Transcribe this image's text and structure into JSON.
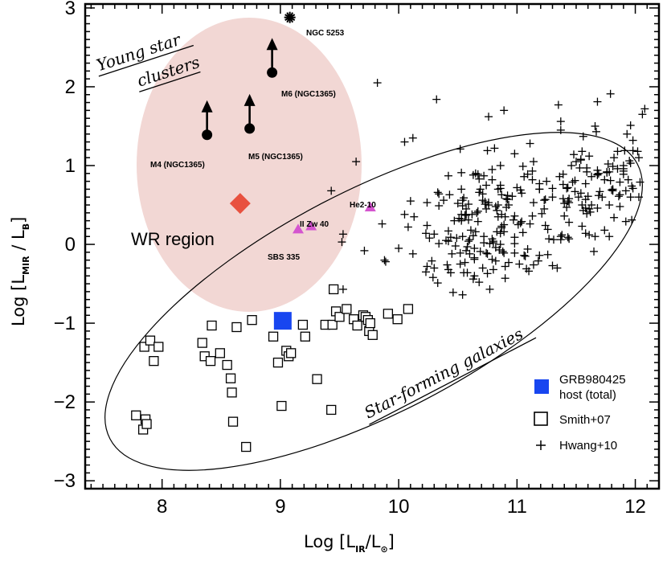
{
  "chart_data": {
    "type": "scatter",
    "xlabel": {
      "prefix": "Log [L",
      "sub1": "IR",
      "mid": "/L",
      "sub2": "⊙",
      "suffix": "]"
    },
    "ylabel": {
      "prefix": "Log [L",
      "sub1": "MIR",
      "mid": " / L",
      "sub2": "B",
      "suffix": "]"
    },
    "xlim": [
      7.35,
      12.2
    ],
    "ylim": [
      -3.1,
      3.05
    ],
    "xticks": [
      "8",
      "9",
      "10",
      "11",
      "12"
    ],
    "yticks": [
      "−3",
      "−2",
      "−1",
      "0",
      "1",
      "2",
      "3"
    ],
    "xtick_values": [
      8,
      9,
      10,
      11,
      12
    ],
    "ytick_values": [
      -3,
      -2,
      -1,
      0,
      1,
      2,
      3
    ],
    "regions": {
      "young_star_clusters": {
        "label_line1": "Young star",
        "label_line2": "clusters",
        "color": "#f2d7d4"
      },
      "wr_region": {
        "label": "WR region"
      },
      "star_forming_galaxies": {
        "label": "Star-forming galaxies"
      }
    },
    "series": [
      {
        "name": "GRB980425 host (total)",
        "marker": "filled-square",
        "color": "#1846f0",
        "x": [
          9.02
        ],
        "y": [
          -0.97
        ]
      },
      {
        "name": "Smith+07",
        "marker": "open-square",
        "color": "#000000",
        "x": [
          7.78,
          7.84,
          7.85,
          7.86,
          7.87,
          7.9,
          7.93,
          7.97,
          8.34,
          8.36,
          8.41,
          8.42,
          8.49,
          8.55,
          8.58,
          8.59,
          8.6,
          8.63,
          8.71,
          8.76,
          8.94,
          8.98,
          9.01,
          9.05,
          9.07,
          9.09,
          9.19,
          9.21,
          9.31,
          9.38,
          9.43,
          9.44,
          9.45,
          9.47,
          9.5,
          9.56,
          9.62,
          9.65,
          9.7,
          9.72,
          9.74,
          9.75,
          9.76,
          9.78,
          9.91,
          9.99,
          10.08
        ],
        "y": [
          -2.17,
          -2.35,
          -1.3,
          -2.22,
          -2.28,
          -1.22,
          -1.48,
          -1.3,
          -1.25,
          -1.42,
          -1.48,
          -1.03,
          -1.38,
          -1.53,
          -1.7,
          -1.88,
          -2.25,
          -1.05,
          -2.57,
          -0.96,
          -1.17,
          -1.5,
          -2.05,
          -1.35,
          -1.42,
          -1.38,
          -1.02,
          -1.17,
          -1.71,
          -1.02,
          -2.1,
          -1.02,
          -0.57,
          -0.85,
          -0.92,
          -0.82,
          -0.95,
          -1.03,
          -0.9,
          -0.92,
          -0.96,
          -1.1,
          -1.0,
          -1.15,
          -0.88,
          -0.95,
          -0.82
        ]
      },
      {
        "name": "Hwang+10",
        "marker": "plus",
        "color": "#000000",
        "x": [
          10.52,
          10.33,
          10.84,
          10.64,
          10.98,
          11.0,
          11.19,
          11.14,
          10.1,
          11.03,
          10.63,
          10.75,
          10.33,
          10.42,
          10.92,
          10.12,
          10.9,
          11.19,
          11.19,
          10.85,
          11.37,
          10.57,
          11.06,
          10.87,
          10.41,
          10.54,
          10.54,
          10.38,
          11.24,
          10.63,
          11.23,
          10.88,
          11.44,
          11.1,
          10.86,
          10.44,
          10.34,
          11.11,
          10.86,
          10.91,
          10.49,
          11.23,
          10.86,
          10.96,
          10.82,
          10.53,
          10.84,
          10.89,
          10.93,
          10.66,
          10.6,
          10.42,
          11.24,
          10.82,
          11.11,
          10.53,
          10.79,
          10.72,
          10.81,
          10.73,
          10.75,
          11.13,
          11.04,
          11.3,
          11.62,
          10.9,
          10.42,
          10.77,
          10.69,
          10.55,
          10.87,
          10.24,
          10.67,
          10.34,
          10.23,
          11.13,
          10.67,
          10.93,
          11.21,
          10.28,
          10.59,
          11.47,
          10.75,
          11.02,
          10.71,
          10.98,
          11.42,
          10.61,
          10.58,
          10.64,
          11.05,
          10.83,
          11.25,
          10.57,
          11.04,
          11.14,
          10.6,
          10.24,
          10.52,
          10.62,
          10.59,
          10.13,
          10.98,
          11.01,
          10.56,
          10.92,
          10.34,
          10.91,
          10.79,
          10.68,
          11.26,
          10.73,
          10.48,
          10.53,
          10.57,
          10.98,
          11.49,
          10.45,
          10.24,
          10.71,
          11.09,
          10.76,
          11.3,
          10.46,
          10.44,
          10.98,
          11.31,
          10.52,
          10.3,
          11.19,
          10.68,
          10.79,
          11.05,
          11.18,
          10.8,
          10.8,
          10.72,
          10.74,
          10.47,
          11.08,
          11.09,
          11.27,
          10.71,
          10.69,
          11.26,
          10.8,
          11.14,
          10.74,
          10.97,
          10.86,
          11.42,
          11.38,
          10.59,
          10.43,
          11.43,
          11.39,
          10.4,
          10.56,
          11.3,
          10.76,
          10.67,
          10.53,
          10.72,
          11.06,
          10.57,
          10.87,
          10.82,
          10.87,
          10.9,
          10.51,
          11.03,
          10.89,
          10.84,
          10.65,
          10.74,
          10.54,
          10.65,
          10.42,
          10.83,
          10.53,
          10.26,
          11.34,
          10.08,
          10.55,
          10.79,
          10.86,
          10.5,
          10.63,
          10.3,
          11.07,
          10.77,
          10.54,
          10.89,
          10.58,
          10.68,
          10.64,
          10.29,
          10.64,
          11.56,
          11.35,
          11.68,
          10.89,
          11.91,
          11.66,
          12.08,
          11.79,
          12.06,
          10.32,
          9.82,
          10.76,
          10.12,
          9.64,
          10.05,
          9.88,
          9.52,
          10.23,
          9.86,
          9.53,
          9.71,
          9.53,
          9.89,
          10.0,
          9.43,
          10.05,
          11.13,
          11.65,
          11.78,
          11.96,
          11.66,
          12.04,
          11.81,
          11.68,
          11.9,
          11.39,
          11.54,
          11.85,
          11.78,
          11.9,
          11.96,
          11.95,
          11.4,
          11.58,
          11.85,
          11.49,
          11.63,
          11.93,
          11.92,
          11.98,
          11.55,
          11.7,
          11.72,
          11.82,
          11.78,
          11.44,
          11.59,
          11.81,
          11.59,
          11.74,
          11.76,
          11.55,
          11.67,
          11.63,
          11.56,
          11.74,
          11.43,
          11.96,
          11.97,
          11.58,
          11.61,
          11.92,
          11.52,
          11.94,
          11.36,
          11.87,
          12.03,
          11.8,
          11.37,
          11.58,
          11.79,
          11.98,
          11.87,
          11.4,
          11.44,
          11.76,
          12.02,
          11.55,
          11.86,
          11.39,
          11.54,
          11.37,
          11.43,
          11.48,
          11.87,
          11.98,
          11.9,
          11.68,
          11.37,
          11.69,
          11.82,
          11.9,
          11.68,
          11.69,
          11.46,
          11.53,
          11.61,
          11.68,
          11.97,
          11.54,
          11.59,
          11.5,
          12.03,
          11.77,
          11.44,
          11.81,
          11.61,
          11.58,
          11.6
        ],
        "y": [
          -0.11,
          0.66,
          0.7,
          -0.19,
          1.15,
          0.72,
          0.7,
          0.53,
          0.55,
          0.27,
          0.11,
          -0.12,
          -0.49,
          0.04,
          0.57,
          -0.12,
          -0.28,
          -0.14,
          0.7,
          -0.07,
          0.06,
          0.37,
          -0.14,
          0.23,
          -0.26,
          0.56,
          0.49,
          0.56,
          0.24,
          0.88,
          0.45,
          -0.09,
          0.28,
          -0.34,
          0.71,
          0.09,
          0.49,
          0.26,
          0.14,
          0.58,
          0.08,
          0.56,
          0.75,
          0.61,
          -0.21,
          0.3,
          0.35,
          0.16,
          -0.23,
          0.4,
          -0.12,
          -0.32,
          0.57,
          -0.04,
          1.28,
          0.7,
          0.95,
          0.1,
          1.22,
          0.51,
          1.19,
          0.93,
          0.29,
          0.71,
          0.41,
          -0.43,
          0.87,
          0.01,
          0.7,
          -0.36,
          0.38,
          0.53,
          0.89,
          0.01,
          0.14,
          0.36,
          0.29,
          0.5,
          0.39,
          -0.21,
          0.51,
          0.79,
          -0.37,
          -0.25,
          0.56,
          -0.11,
          0.47,
          0.18,
          -0.03,
          -0.17,
          0.15,
          0.16,
          0.8,
          0.45,
          0.65,
          1.05,
          0.06,
          0.24,
          1.21,
          0.38,
          0.31,
          0.35,
          0.36,
          0.25,
          -0.23,
          0.62,
          0.64,
          0.47,
          0.07,
          0.66,
          0.19,
          0.54,
          -0.02,
          0.38,
          -0.08,
          0.09,
          0.67,
          -0.12,
          -0.28,
          0.64,
          0.89,
          0.53,
          -0.27,
          -0.61,
          -0.36,
          0.01,
          0.06,
          -0.25,
          -0.3,
          0.77,
          0.83,
          -0.19,
          0.99,
          -0.21,
          0.02,
          0.04,
          0.02,
          -0.11,
          0.3,
          -0.31,
          -0.06,
          0.07,
          -0.3,
          -0.09,
          -0.13,
          -0.32,
          -0.26,
          0.75,
          0.31,
          1.0,
          0.71,
          0.12,
          0.04,
          0.63,
          0.09,
          0.58,
          0.05,
          0.37,
          0.6,
          0.5,
          0.42,
          0.91,
          0.87,
          0.86,
          0.38,
          0.21,
          0.48,
          0.63,
          0.35,
          0.33,
          0.69,
          0.25,
          0.5,
          0.16,
          0.45,
          0.1,
          0.9,
          0.17,
          0.43,
          0.32,
          0.08,
          -0.3,
          0.22,
          0.59,
          0.82,
          0.0,
          0.52,
          -0.44,
          0.13,
          -0.15,
          -0.57,
          -0.64,
          -0.11,
          -0.36,
          -0.48,
          -0.4,
          -0.42,
          -0.05,
          1.37,
          1.77,
          1.81,
          1.7,
          1.19,
          1.5,
          1.72,
          1.91,
          1.65,
          1.84,
          2.05,
          1.62,
          1.35,
          1.05,
          1.3,
          -0.2,
          0.03,
          -0.35,
          0.26,
          0.13,
          -0.08,
          -0.57,
          -0.22,
          -0.05,
          0.68,
          0.38,
          0.82,
          -0.09,
          0.1,
          0.6,
          0.1,
          0.79,
          0.7,
          0.46,
          0.93,
          0.76,
          1.08,
          0.96,
          0.5,
          0.96,
          1.03,
          1.06,
          0.36,
          0.14,
          1.18,
          0.81,
          0.86,
          1.4,
          0.29,
          1.32,
          1.18,
          0.67,
          0.6,
          1.1,
          0.92,
          0.53,
          0.39,
          0.68,
          0.97,
          0.82,
          0.92,
          0.23,
          1.43,
          0.5,
          0.43,
          0.18,
          0.55,
          1.51,
          0.74,
          0.77,
          0.45,
          0.68,
          0.6,
          0.82,
          0.86,
          0.79,
          1.1,
          0.69,
          1.56,
          0.46,
          0.81,
          1.19,
          0.48,
          0.52,
          0.07,
          0.91,
          1.18,
          0.5,
          0.61,
          0.89,
          0.65,
          0.1,
          0.72,
          1.14,
          0.63,
          0.71,
          0.89,
          0.88,
          1.45,
          0.62,
          0.34,
          1.0,
          0.89,
          0.9,
          1.0,
          0.97,
          1.12,
          0.94,
          0.31,
          1.07,
          0.92,
          1.05,
          0.6,
          1.02,
          0.58,
          0.99,
          0.12,
          0.57,
          0.61
        ]
      }
    ],
    "objects": [
      {
        "name": "NGC 5253",
        "marker": "star-burst",
        "x": 9.08,
        "y": 2.88
      },
      {
        "name": "M6 (NGC1365)",
        "marker": "lower-limit",
        "x": 8.93,
        "y": 2.18
      },
      {
        "name": "M4 (NGC1365)",
        "marker": "lower-limit",
        "x": 8.38,
        "y": 1.39
      },
      {
        "name": "M5 (NGC1365)",
        "marker": "lower-limit",
        "x": 8.74,
        "y": 1.47
      },
      {
        "name": "WR region",
        "marker": "diamond",
        "color": "#e8513f",
        "x": 8.66,
        "y": 0.52
      },
      {
        "name": "He2-10",
        "marker": "triangle",
        "color": "#d455cf",
        "x": 9.76,
        "y": 0.47
      },
      {
        "name": "II Zw 40",
        "marker": "triangle",
        "color": "#d455cf",
        "x": 9.26,
        "y": 0.23
      },
      {
        "name": "SBS 335",
        "marker": "triangle",
        "color": "#d455cf",
        "x": 9.15,
        "y": 0.19
      }
    ],
    "legend": [
      {
        "label_line1": "GRB980425",
        "label_line2": "host (total)",
        "marker": "filled-square"
      },
      {
        "label_line1": "Smith+07",
        "label_line2": "",
        "marker": "open-square"
      },
      {
        "label_line1": "Hwang+10",
        "label_line2": "",
        "marker": "plus"
      }
    ]
  }
}
